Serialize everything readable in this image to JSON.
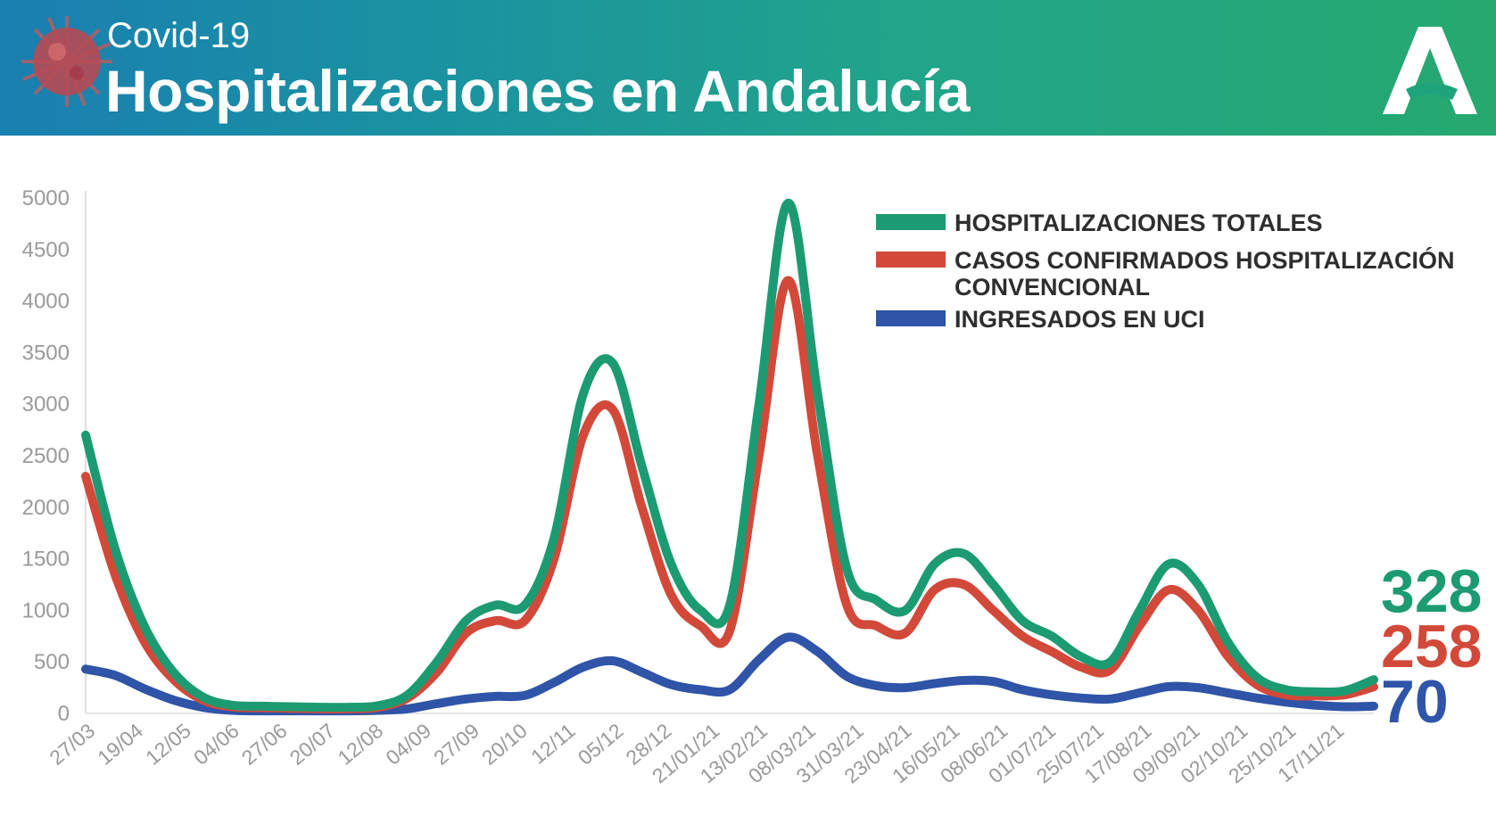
{
  "header": {
    "subtitle": "Covid-19",
    "title": "Hospitalizaciones en Andalucía",
    "icons": [
      "virus-icon",
      "junta-andalucia-logo-icon"
    ]
  },
  "colors": {
    "total": "#1c9b72",
    "convencional": "#d2493a",
    "uci": "#2f54a8"
  },
  "chart_data": {
    "type": "line",
    "title": "",
    "xlabel": "",
    "ylabel": "",
    "ylim": [
      0,
      5000
    ],
    "yticks": [
      0,
      500,
      1000,
      1500,
      2000,
      2500,
      3000,
      3500,
      4000,
      4500,
      5000
    ],
    "x_tick_labels": [
      "27/03",
      "19/04",
      "12/05",
      "04/06",
      "27/06",
      "20/07",
      "12/08",
      "04/09",
      "27/09",
      "20/10",
      "12/11",
      "05/12",
      "28/12",
      "21/01/21",
      "13/02/21",
      "08/03/21",
      "31/03/21",
      "23/04/21",
      "16/05/21",
      "08/06/21",
      "01/07/21",
      "25/07/21",
      "17/08/21",
      "09/09/21",
      "02/10/21",
      "25/10/21",
      "17/11/21"
    ],
    "grid": false,
    "legend_position": "top-right",
    "legend": [
      {
        "key": "total",
        "label": "HOSPITALIZACIONES TOTALES"
      },
      {
        "key": "convencional",
        "label_line1": "CASOS CONFIRMADOS HOSPITALIZACIÓN",
        "label_line2": "CONVENCIONAL"
      },
      {
        "key": "uci",
        "label": "INGRESADOS EN UCI"
      }
    ],
    "end_values": {
      "total": "328",
      "convencional": "258",
      "uci": "70"
    },
    "series": [
      {
        "key": "total",
        "name": "HOSPITALIZACIONES TOTALES",
        "values": [
          2700,
          1600,
          850,
          400,
          160,
          80,
          70,
          65,
          60,
          60,
          75,
          180,
          500,
          900,
          1050,
          1050,
          1700,
          3100,
          3400,
          2400,
          1450,
          1000,
          1050,
          3000,
          4950,
          3100,
          1400,
          1100,
          1000,
          1450,
          1550,
          1250,
          900,
          750,
          550,
          500,
          1000,
          1450,
          1250,
          700,
          350,
          230,
          210,
          220,
          328
        ]
      },
      {
        "key": "convencional",
        "name": "CASOS CONFIRMADOS HOSPITALIZACIÓN CONVENCIONAL",
        "values": [
          2300,
          1350,
          700,
          330,
          130,
          65,
          55,
          50,
          45,
          45,
          60,
          150,
          400,
          780,
          900,
          900,
          1500,
          2700,
          2950,
          2000,
          1150,
          850,
          800,
          2500,
          4200,
          2500,
          1050,
          850,
          780,
          1200,
          1250,
          1000,
          750,
          600,
          450,
          420,
          850,
          1200,
          1000,
          560,
          280,
          180,
          170,
          180,
          258
        ]
      },
      {
        "key": "uci",
        "name": "INGRESADOS EN UCI",
        "values": [
          430,
          370,
          240,
          130,
          60,
          30,
          25,
          25,
          25,
          25,
          30,
          45,
          95,
          140,
          165,
          175,
          300,
          450,
          510,
          400,
          280,
          230,
          230,
          520,
          740,
          600,
          360,
          270,
          250,
          290,
          320,
          310,
          230,
          180,
          150,
          140,
          200,
          260,
          250,
          200,
          150,
          110,
          80,
          65,
          70
        ]
      }
    ]
  }
}
